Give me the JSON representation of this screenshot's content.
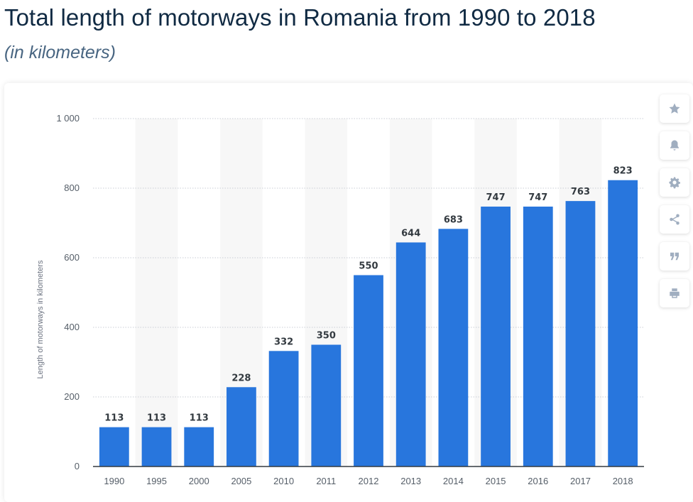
{
  "header": {
    "title": "Total length of motorways in Romania from 1990 to 2018",
    "subtitle": "(in kilometers)"
  },
  "toolbar": {
    "buttons": [
      {
        "icon": "star-icon"
      },
      {
        "icon": "bell-icon"
      },
      {
        "icon": "gear-icon"
      },
      {
        "icon": "share-icon"
      },
      {
        "icon": "quote-icon"
      },
      {
        "icon": "print-icon"
      }
    ]
  },
  "chart_data": {
    "type": "bar",
    "title": "Total length of motorways in Romania from 1990 to 2018",
    "subtitle": "(in kilometers)",
    "xlabel": "",
    "ylabel": "Length of motorways in kilometers",
    "categories": [
      "1990",
      "1995",
      "2000",
      "2005",
      "2010",
      "2011",
      "2012",
      "2013",
      "2014",
      "2015",
      "2016",
      "2017",
      "2018"
    ],
    "values": [
      113,
      113,
      113,
      228,
      332,
      350,
      550,
      644,
      683,
      747,
      747,
      763,
      823
    ],
    "ylim": [
      0,
      1000
    ],
    "yticks": [
      0,
      200,
      400,
      600,
      800,
      1000
    ],
    "ytick_labels": [
      "0",
      "200",
      "400",
      "600",
      "800",
      "1 000"
    ],
    "grid": true,
    "bar_color": "#2876dd",
    "band_color": "#f7f7f7",
    "data_labels": true
  }
}
